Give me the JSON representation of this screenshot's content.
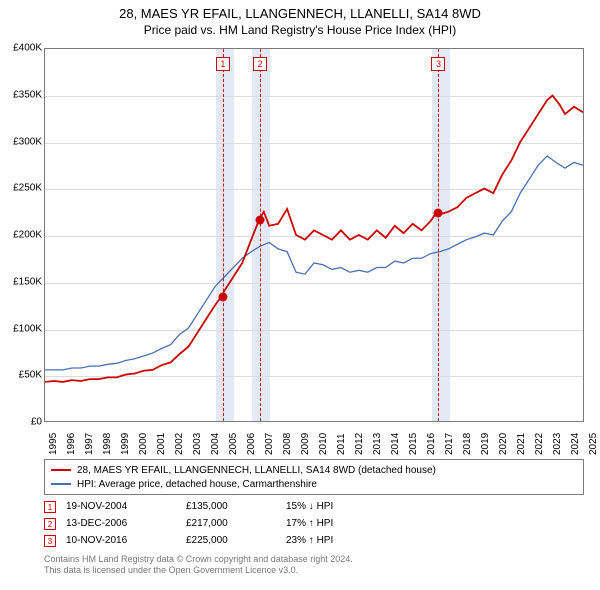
{
  "title": "28, MAES YR EFAIL, LLANGENNECH, LLANELLI, SA14 8WD",
  "subtitle": "Price paid vs. HM Land Registry's House Price Index (HPI)",
  "chart": {
    "type": "line",
    "ylim": [
      0,
      400000
    ],
    "ytick_step": 50000,
    "ytick_labels": [
      "£0",
      "£50K",
      "£100K",
      "£150K",
      "£200K",
      "£250K",
      "£300K",
      "£350K",
      "£400K"
    ],
    "x_start_year": 1995,
    "x_end_year": 2025,
    "x_labels": [
      "1995",
      "1996",
      "1997",
      "1998",
      "1999",
      "2000",
      "2001",
      "2002",
      "2003",
      "2004",
      "2005",
      "2006",
      "2007",
      "2008",
      "2009",
      "2010",
      "2011",
      "2012",
      "2013",
      "2014",
      "2015",
      "2016",
      "2017",
      "2018",
      "2019",
      "2020",
      "2021",
      "2022",
      "2023",
      "2024",
      "2025"
    ],
    "background_color": "#ffffff",
    "grid_color": "#dcdcdc",
    "border_color": "#7a7a7a",
    "band_color": "#e3eaf6",
    "colors": {
      "red": "#cc0000",
      "blue": "#4a6fb0"
    },
    "line_width": {
      "red": 1.8,
      "blue": 1.3
    },
    "bands": [
      {
        "from_year": 2004.5,
        "to_year": 2005.5
      },
      {
        "from_year": 2006.5,
        "to_year": 2007.5
      },
      {
        "from_year": 2016.5,
        "to_year": 2017.5
      }
    ],
    "rules": [
      {
        "year": 2004.88
      },
      {
        "year": 2006.95
      },
      {
        "year": 2016.86
      }
    ],
    "marker_boxes": [
      {
        "label": "1",
        "year": 2004.88
      },
      {
        "label": "2",
        "year": 2006.95
      },
      {
        "label": "3",
        "year": 2016.86
      }
    ],
    "sale_points": [
      {
        "year": 2004.88,
        "value": 135000
      },
      {
        "year": 2006.95,
        "value": 217000
      },
      {
        "year": 2016.86,
        "value": 225000
      }
    ],
    "series_red": [
      [
        1995.0,
        42000
      ],
      [
        1995.5,
        43000
      ],
      [
        1996.0,
        42000
      ],
      [
        1996.5,
        44000
      ],
      [
        1997.0,
        43000
      ],
      [
        1997.5,
        45000
      ],
      [
        1998.0,
        45000
      ],
      [
        1998.5,
        47000
      ],
      [
        1999.0,
        47000
      ],
      [
        1999.5,
        50000
      ],
      [
        2000.0,
        51000
      ],
      [
        2000.5,
        54000
      ],
      [
        2001.0,
        55000
      ],
      [
        2001.5,
        60000
      ],
      [
        2002.0,
        63000
      ],
      [
        2002.5,
        72000
      ],
      [
        2003.0,
        80000
      ],
      [
        2003.5,
        95000
      ],
      [
        2004.0,
        110000
      ],
      [
        2004.5,
        125000
      ],
      [
        2004.88,
        135000
      ],
      [
        2005.0,
        140000
      ],
      [
        2005.5,
        155000
      ],
      [
        2006.0,
        170000
      ],
      [
        2006.5,
        195000
      ],
      [
        2006.95,
        217000
      ],
      [
        2007.2,
        225000
      ],
      [
        2007.5,
        210000
      ],
      [
        2008.0,
        212000
      ],
      [
        2008.5,
        228000
      ],
      [
        2009.0,
        200000
      ],
      [
        2009.5,
        195000
      ],
      [
        2010.0,
        205000
      ],
      [
        2010.5,
        200000
      ],
      [
        2011.0,
        195000
      ],
      [
        2011.5,
        205000
      ],
      [
        2012.0,
        195000
      ],
      [
        2012.5,
        200000
      ],
      [
        2013.0,
        195000
      ],
      [
        2013.5,
        205000
      ],
      [
        2014.0,
        197000
      ],
      [
        2014.5,
        210000
      ],
      [
        2015.0,
        202000
      ],
      [
        2015.5,
        212000
      ],
      [
        2016.0,
        205000
      ],
      [
        2016.5,
        215000
      ],
      [
        2016.86,
        225000
      ],
      [
        2017.0,
        222000
      ],
      [
        2017.5,
        225000
      ],
      [
        2018.0,
        230000
      ],
      [
        2018.5,
        240000
      ],
      [
        2019.0,
        245000
      ],
      [
        2019.5,
        250000
      ],
      [
        2020.0,
        245000
      ],
      [
        2020.5,
        265000
      ],
      [
        2021.0,
        280000
      ],
      [
        2021.5,
        300000
      ],
      [
        2022.0,
        315000
      ],
      [
        2022.5,
        330000
      ],
      [
        2023.0,
        345000
      ],
      [
        2023.3,
        350000
      ],
      [
        2023.7,
        340000
      ],
      [
        2024.0,
        330000
      ],
      [
        2024.5,
        338000
      ],
      [
        2025.0,
        332000
      ]
    ],
    "series_blue": [
      [
        1995.0,
        55000
      ],
      [
        1995.5,
        55000
      ],
      [
        1996.0,
        55000
      ],
      [
        1996.5,
        57000
      ],
      [
        1997.0,
        57000
      ],
      [
        1997.5,
        59000
      ],
      [
        1998.0,
        59000
      ],
      [
        1998.5,
        61000
      ],
      [
        1999.0,
        62000
      ],
      [
        1999.5,
        65000
      ],
      [
        2000.0,
        67000
      ],
      [
        2000.5,
        70000
      ],
      [
        2001.0,
        73000
      ],
      [
        2001.5,
        78000
      ],
      [
        2002.0,
        82000
      ],
      [
        2002.5,
        93000
      ],
      [
        2003.0,
        100000
      ],
      [
        2003.5,
        115000
      ],
      [
        2004.0,
        130000
      ],
      [
        2004.5,
        145000
      ],
      [
        2005.0,
        155000
      ],
      [
        2005.5,
        165000
      ],
      [
        2006.0,
        175000
      ],
      [
        2006.5,
        182000
      ],
      [
        2007.0,
        188000
      ],
      [
        2007.5,
        192000
      ],
      [
        2008.0,
        185000
      ],
      [
        2008.5,
        182000
      ],
      [
        2009.0,
        160000
      ],
      [
        2009.5,
        158000
      ],
      [
        2010.0,
        170000
      ],
      [
        2010.5,
        168000
      ],
      [
        2011.0,
        163000
      ],
      [
        2011.5,
        165000
      ],
      [
        2012.0,
        160000
      ],
      [
        2012.5,
        162000
      ],
      [
        2013.0,
        160000
      ],
      [
        2013.5,
        165000
      ],
      [
        2014.0,
        165000
      ],
      [
        2014.5,
        172000
      ],
      [
        2015.0,
        170000
      ],
      [
        2015.5,
        175000
      ],
      [
        2016.0,
        175000
      ],
      [
        2016.5,
        180000
      ],
      [
        2017.0,
        182000
      ],
      [
        2017.5,
        185000
      ],
      [
        2018.0,
        190000
      ],
      [
        2018.5,
        195000
      ],
      [
        2019.0,
        198000
      ],
      [
        2019.5,
        202000
      ],
      [
        2020.0,
        200000
      ],
      [
        2020.5,
        215000
      ],
      [
        2021.0,
        225000
      ],
      [
        2021.5,
        245000
      ],
      [
        2022.0,
        260000
      ],
      [
        2022.5,
        275000
      ],
      [
        2023.0,
        285000
      ],
      [
        2023.5,
        278000
      ],
      [
        2024.0,
        272000
      ],
      [
        2024.5,
        278000
      ],
      [
        2025.0,
        275000
      ]
    ]
  },
  "legend": {
    "red": "28, MAES YR EFAIL, LLANGENNECH, LLANELLI, SA14 8WD (detached house)",
    "blue": "HPI: Average price, detached house, Carmarthenshire"
  },
  "sales": [
    {
      "n": "1",
      "date": "19-NOV-2004",
      "price": "£135,000",
      "diff": "15% ↓ HPI"
    },
    {
      "n": "2",
      "date": "13-DEC-2006",
      "price": "£217,000",
      "diff": "17% ↑ HPI"
    },
    {
      "n": "3",
      "date": "10-NOV-2016",
      "price": "£225,000",
      "diff": "23% ↑ HPI"
    }
  ],
  "attribution": {
    "line1": "Contains HM Land Registry data © Crown copyright and database right 2024.",
    "line2": "This data is licensed under the Open Government Licence v3.0."
  },
  "label_fontsize": 10,
  "title_fontsize": 13
}
